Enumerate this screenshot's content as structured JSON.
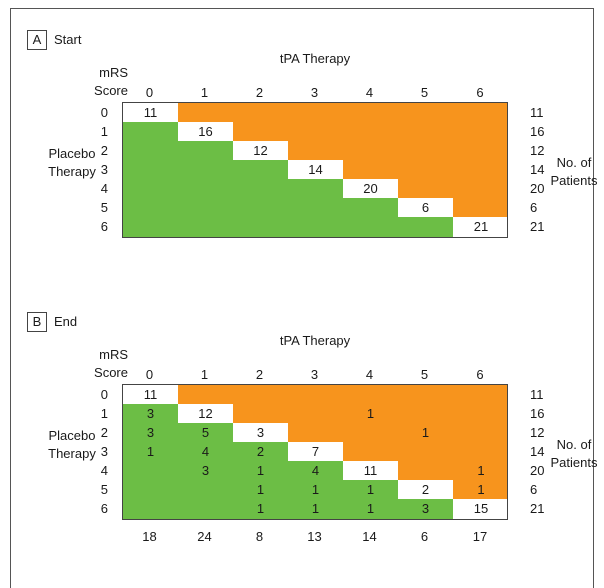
{
  "colors": {
    "upper": "#F7941D",
    "lower": "#6CBE45",
    "diag": "#FFFFFF"
  },
  "labels": {
    "mrs_line1": "mRS",
    "mrs_line2": "Score",
    "tpa": "tPA Therapy",
    "placebo_line1": "Placebo",
    "placebo_line2": "Therapy",
    "patients_line1": "No. of",
    "patients_line2": "Patients",
    "categories": [
      "0",
      "1",
      "2",
      "3",
      "4",
      "5",
      "6"
    ]
  },
  "panels": [
    {
      "letter": "A",
      "title": "Start",
      "row_totals": [
        "11",
        "16",
        "12",
        "14",
        "20",
        "6",
        "21"
      ],
      "cells": [
        [
          "11",
          "",
          "",
          "",
          "",
          "",
          ""
        ],
        [
          "",
          "16",
          "",
          "",
          "",
          "",
          ""
        ],
        [
          "",
          "",
          "12",
          "",
          "",
          "",
          ""
        ],
        [
          "",
          "",
          "",
          "14",
          "",
          "",
          ""
        ],
        [
          "",
          "",
          "",
          "",
          "20",
          "",
          ""
        ],
        [
          "",
          "",
          "",
          "",
          "",
          "6",
          ""
        ],
        [
          "",
          "",
          "",
          "",
          "",
          "",
          "21"
        ]
      ]
    },
    {
      "letter": "B",
      "title": "End",
      "row_totals": [
        "11",
        "16",
        "12",
        "14",
        "20",
        "6",
        "21"
      ],
      "col_totals": [
        "18",
        "24",
        "8",
        "13",
        "14",
        "6",
        "17"
      ],
      "cells": [
        [
          "11",
          "",
          "",
          "",
          "",
          "",
          ""
        ],
        [
          "3",
          "12",
          "",
          "",
          "1",
          "",
          ""
        ],
        [
          "3",
          "5",
          "3",
          "",
          "",
          "1",
          ""
        ],
        [
          "1",
          "4",
          "2",
          "7",
          "",
          "",
          ""
        ],
        [
          "",
          "3",
          "1",
          "4",
          "11",
          "",
          "1"
        ],
        [
          "",
          "",
          "1",
          "1",
          "1",
          "2",
          "1"
        ],
        [
          "",
          "",
          "1",
          "1",
          "1",
          "3",
          "15"
        ]
      ]
    }
  ]
}
